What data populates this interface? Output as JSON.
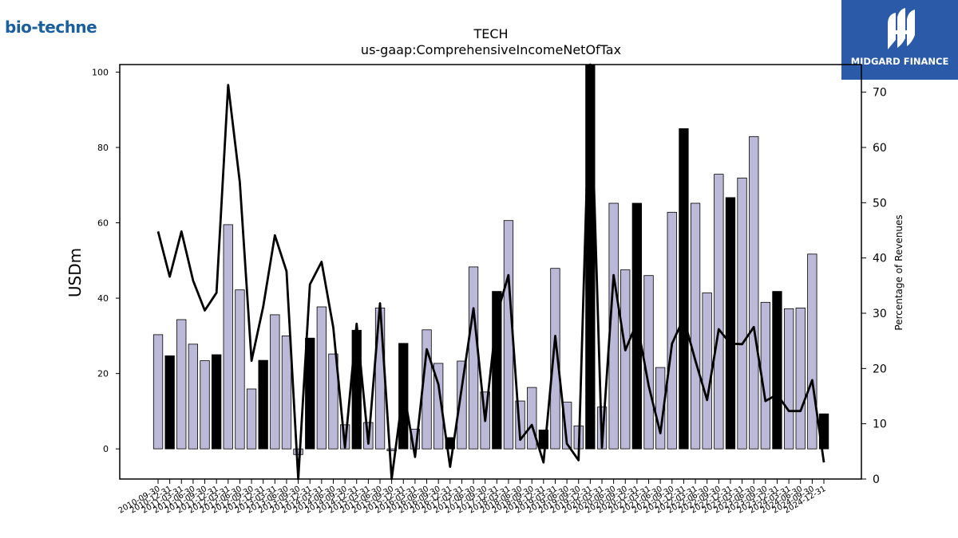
{
  "brand": {
    "company_logo_text": "bio-techne",
    "publisher_logo_text": "MIDGARD FINANCE"
  },
  "colors": {
    "quarter_bar": "#bcb8d8",
    "fiscal_year_bar": "#000000",
    "line": "#000000",
    "publisher_bg": "#2a5aa8",
    "company_brand": "#1a5f9e"
  },
  "chart_data": {
    "type": "bar",
    "title": "TECH",
    "subtitle": "us-gaap:ComprehensiveIncomeNetOfTax",
    "ylabel": "USDm",
    "y2label": "Percentage of Revenues",
    "ylim": [
      -8,
      102
    ],
    "y2lim": [
      0,
      75
    ],
    "yticks": [
      0,
      20,
      40,
      60,
      80,
      100
    ],
    "y2ticks": [
      0,
      10,
      20,
      30,
      40,
      50,
      60,
      70
    ],
    "grid": false,
    "categories": [
      "2010-09-30",
      "2010-12-31",
      "2011-03-31",
      "2011-06-30",
      "2011-09-30",
      "2011-12-31",
      "2012-03-31",
      "2012-06-30",
      "2012-09-30",
      "2012-12-31",
      "2013-03-31",
      "2013-06-30",
      "2013-09-30",
      "2013-12-31",
      "2014-03-31",
      "2014-06-30",
      "2014-09-30",
      "2014-12-31",
      "2015-03-31",
      "2015-06-30",
      "2015-09-30",
      "2015-12-31",
      "2016-03-31",
      "2016-06-30",
      "2016-09-30",
      "2016-12-31",
      "2017-03-31",
      "2017-06-30",
      "2017-09-30",
      "2017-12-31",
      "2018-03-31",
      "2018-06-30",
      "2018-09-30",
      "2018-12-31",
      "2019-03-31",
      "2019-06-30",
      "2019-09-30",
      "2019-12-31",
      "2020-03-31",
      "2020-06-30",
      "2020-09-30",
      "2020-12-31",
      "2021-03-31",
      "2021-06-30",
      "2021-09-30",
      "2021-12-31",
      "2022-03-31",
      "2022-06-30",
      "2022-09-30",
      "2022-12-31",
      "2023-03-31",
      "2023-06-30",
      "2023-09-30",
      "2023-12-31",
      "2024-03-31",
      "2024-06-30",
      "2024-09-30",
      "2024-12-31"
    ],
    "series": [
      {
        "kind": "bar",
        "values": [
          30.3,
          24.7,
          34.3,
          27.8,
          23.4,
          25.0,
          59.5,
          42.2,
          15.9,
          23.5,
          35.6,
          30.0,
          -1.5,
          29.4,
          37.7,
          25.2,
          6.4,
          31.5,
          7.0,
          37.4,
          -0.5,
          28.0,
          5.2,
          31.6,
          22.7,
          3.0,
          23.3,
          48.3,
          15.1,
          41.8,
          60.6,
          12.7,
          16.3,
          5.0,
          47.9,
          12.4,
          6.1,
          102.0,
          11.1,
          65.2,
          47.5,
          65.2,
          46.0,
          21.6,
          62.8,
          85.0,
          65.2,
          41.4,
          72.9,
          66.7,
          71.9,
          82.9,
          38.9,
          41.8,
          37.2,
          37.4,
          51.7,
          9.3
        ],
        "fiscal_year_end": [
          false,
          true,
          false,
          false,
          false,
          true,
          false,
          false,
          false,
          true,
          false,
          false,
          false,
          true,
          false,
          false,
          false,
          true,
          false,
          false,
          false,
          true,
          false,
          false,
          false,
          true,
          false,
          false,
          false,
          true,
          false,
          false,
          false,
          true,
          false,
          false,
          false,
          true,
          false,
          false,
          false,
          true,
          false,
          false,
          false,
          true,
          false,
          false,
          false,
          true,
          false,
          false,
          false,
          true,
          false,
          false,
          false,
          true
        ]
      },
      {
        "kind": "line",
        "axis": "right",
        "values": [
          44.8,
          36.6,
          44.8,
          35.9,
          30.5,
          33.7,
          71.3,
          53.7,
          21.4,
          31.2,
          44.1,
          37.6,
          0.0,
          35.2,
          39.3,
          27.4,
          5.7,
          28.1,
          6.4,
          31.8,
          0.0,
          16.3,
          4.0,
          23.5,
          17.1,
          2.2,
          16.5,
          30.9,
          10.5,
          29.7,
          36.9,
          7.1,
          9.8,
          3.0,
          25.9,
          6.4,
          3.4,
          75.0,
          5.7,
          36.9,
          23.3,
          28.4,
          16.9,
          8.3,
          24.5,
          29.1,
          21.4,
          14.3,
          27.1,
          24.5,
          24.4,
          27.5,
          14.1,
          15.3,
          12.3,
          12.3,
          17.9,
          3.0
        ]
      }
    ]
  }
}
